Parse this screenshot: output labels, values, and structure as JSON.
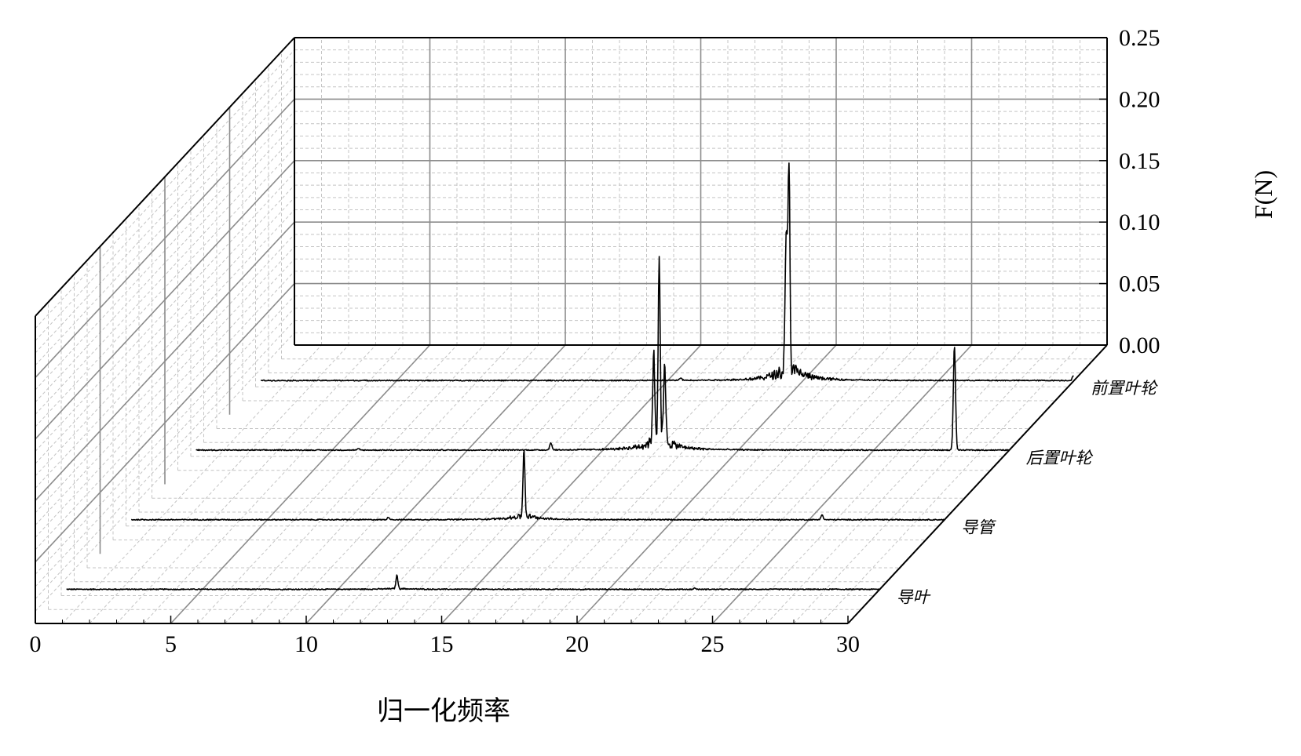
{
  "chart_data": {
    "type": "line",
    "projection": "3d-waterfall",
    "xlabel": "归一化频率",
    "ylabel": "F(N)",
    "xlim": [
      0,
      30
    ],
    "zlim": [
      0,
      0.25
    ],
    "xticks": [
      "0",
      "5",
      "10",
      "15",
      "20",
      "25",
      "30"
    ],
    "zticks": [
      "0.00",
      "0.05",
      "0.10",
      "0.15",
      "0.20",
      "0.25"
    ],
    "grid": true,
    "series": [
      {
        "name": "导叶",
        "baseline": 0.0005,
        "peaks": [
          [
            12.2,
            0.011
          ],
          [
            23.2,
            0.001
          ]
        ]
      },
      {
        "name": "导管",
        "baseline": 0.0005,
        "peaks": [
          [
            14.5,
            0.055
          ],
          [
            9.5,
            0.002
          ],
          [
            25.5,
            0.004
          ]
        ]
      },
      {
        "name": "后置叶轮",
        "baseline": 0.0005,
        "peaks": [
          [
            17.1,
            0.155
          ],
          [
            16.9,
            0.07
          ],
          [
            17.3,
            0.06
          ],
          [
            28.0,
            0.085
          ],
          [
            13.1,
            0.006
          ],
          [
            6.0,
            0.001
          ]
        ]
      },
      {
        "name": "前置叶轮",
        "baseline": 0.0005,
        "peaks": [
          [
            19.5,
            0.17
          ],
          [
            19.4,
            0.11
          ],
          [
            30.0,
            0.004
          ],
          [
            15.5,
            0.002
          ]
        ]
      }
    ]
  }
}
